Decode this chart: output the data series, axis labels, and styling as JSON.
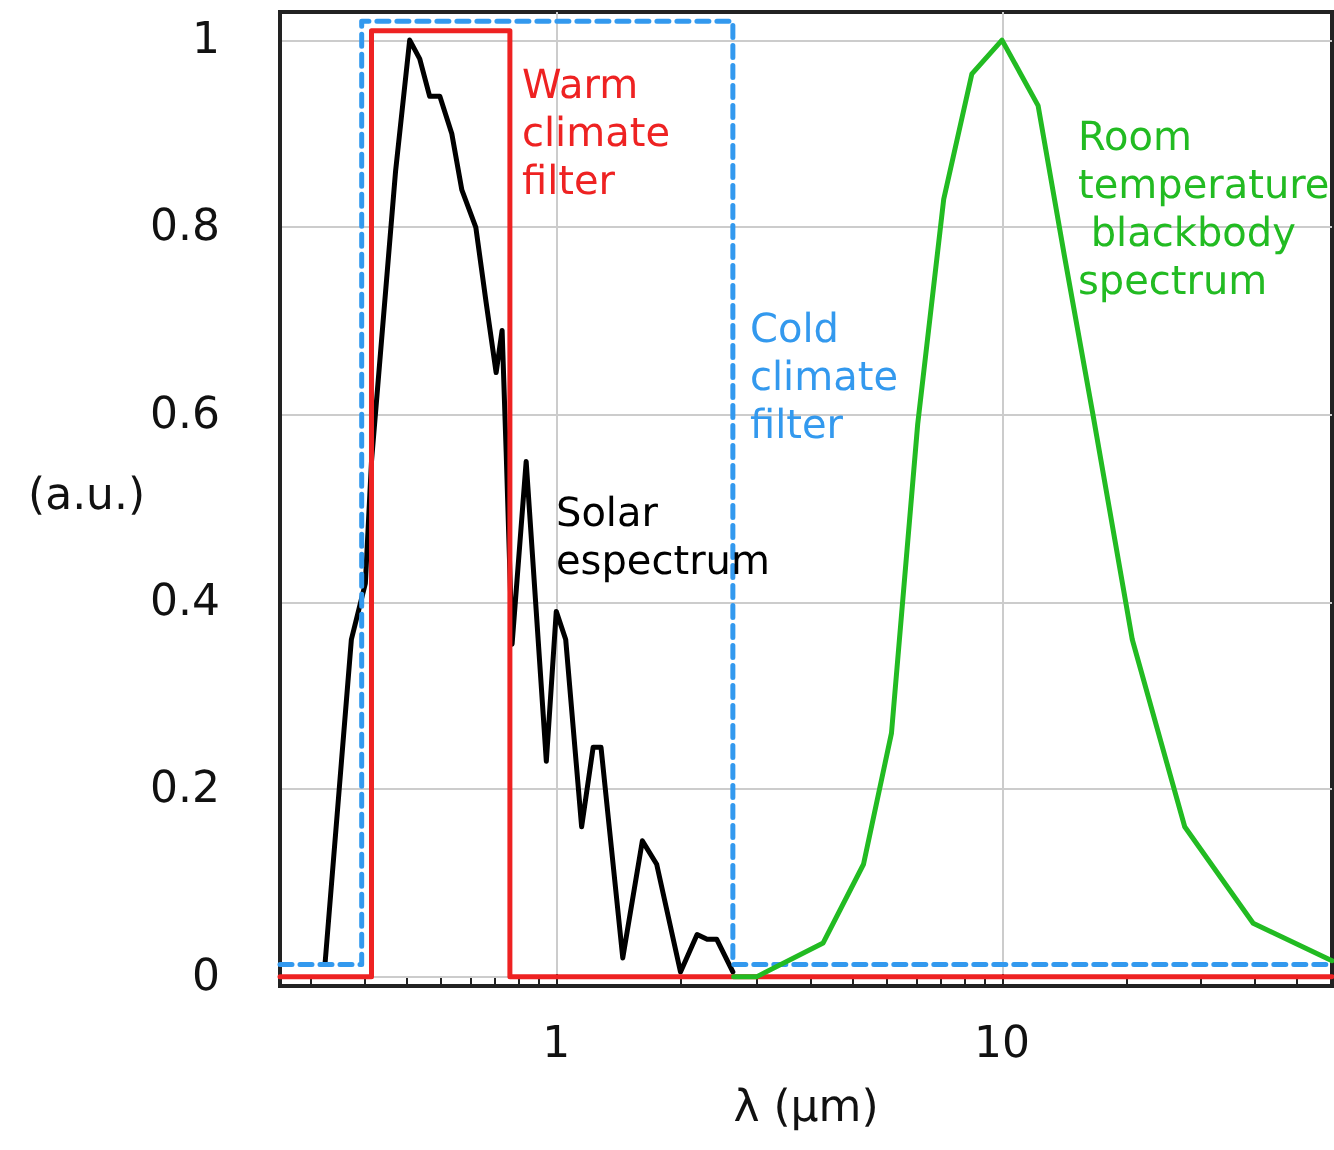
{
  "chart_data": {
    "type": "line",
    "xlabel": "λ (μm)",
    "ylabel": "(a.u.)",
    "log": "x",
    "xlim": [
      0.24,
      55
    ],
    "xticks": [
      1,
      10
    ],
    "ylim": [
      -0.01,
      1.03
    ],
    "yticks": [
      0,
      0.2,
      0.4,
      0.6,
      0.8,
      1
    ],
    "grid": true,
    "legend": false,
    "marker": "none",
    "series": [
      {
        "name": "Solar espectrum",
        "color": "#000000",
        "line_style": "solid",
        "x": [
          0.303,
          0.347,
          0.373,
          0.385,
          0.436,
          0.469,
          0.494,
          0.52,
          0.548,
          0.583,
          0.614,
          0.66,
          0.696,
          0.733,
          0.756,
          0.772,
          0.796,
          0.856,
          0.95,
          1.0,
          1.05,
          1.14,
          1.21,
          1.26,
          1.41,
          1.56,
          1.68,
          1.9,
          2.07,
          2.18,
          2.29,
          2.49
        ],
        "values": [
          0.015,
          0.36,
          0.42,
          0.55,
          0.86,
          1.0,
          0.98,
          0.94,
          0.94,
          0.9,
          0.84,
          0.8,
          0.72,
          0.645,
          0.69,
          0.56,
          0.355,
          0.55,
          0.23,
          0.39,
          0.36,
          0.16,
          0.245,
          0.245,
          0.02,
          0.145,
          0.12,
          0.005,
          0.045,
          0.04,
          0.04,
          0.005
        ]
      },
      {
        "name": "Warm climate filter",
        "color": "#ee2222",
        "line_style": "solid",
        "x": [
          0.24,
          0.385,
          0.385,
          0.787,
          0.787,
          55
        ],
        "values": [
          0,
          0,
          1.01,
          1.01,
          0,
          0
        ]
      },
      {
        "name": "Cold climate filter",
        "color": "#3399ee",
        "line_style": "dashed",
        "x": [
          0.24,
          0.366,
          0.366,
          2.49,
          2.49,
          55
        ],
        "values": [
          0.013,
          0.013,
          1.02,
          1.02,
          0.013,
          0.013
        ]
      },
      {
        "name": "Room temperature blackbody spectrum",
        "color": "#22bb22",
        "line_style": "solid",
        "x": [
          2.5,
          2.82,
          3.97,
          4.89,
          5.65,
          6.47,
          7.4,
          8.56,
          10,
          12.05,
          13.8,
          16,
          19.6,
          25.7,
          36.6,
          55
        ],
        "values": [
          0,
          0.0,
          0.036,
          0.12,
          0.26,
          0.59,
          0.83,
          0.964,
          1.0,
          0.93,
          0.77,
          0.6,
          0.36,
          0.16,
          0.057,
          0.017
        ]
      }
    ]
  }
}
